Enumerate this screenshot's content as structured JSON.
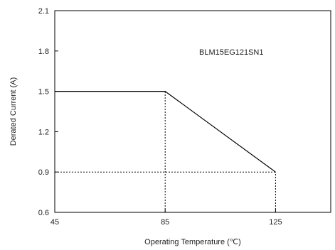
{
  "chart_data": {
    "type": "line",
    "title": "",
    "xlabel": "Operating Temperature (℃)",
    "ylabel": "Derated Current (A)",
    "xlim": [
      45,
      145
    ],
    "ylim": [
      0.6,
      2.1
    ],
    "x_ticks": [
      "45",
      "85",
      "125"
    ],
    "y_ticks": [
      "0.6",
      "0.9",
      "1.2",
      "1.5",
      "1.8",
      "2.1"
    ],
    "grid": false,
    "annotation": "BLM15EG121SN1",
    "series": [
      {
        "x": [
          45,
          85,
          125
        ],
        "y": [
          1.5,
          1.5,
          0.9
        ]
      }
    ],
    "reference_lines": [
      {
        "x": [
          85,
          85
        ],
        "y": [
          0.6,
          1.5
        ]
      },
      {
        "x": [
          45,
          125
        ],
        "y": [
          0.9,
          0.9
        ]
      },
      {
        "x": [
          125,
          125
        ],
        "y": [
          0.6,
          0.9
        ]
      }
    ]
  }
}
